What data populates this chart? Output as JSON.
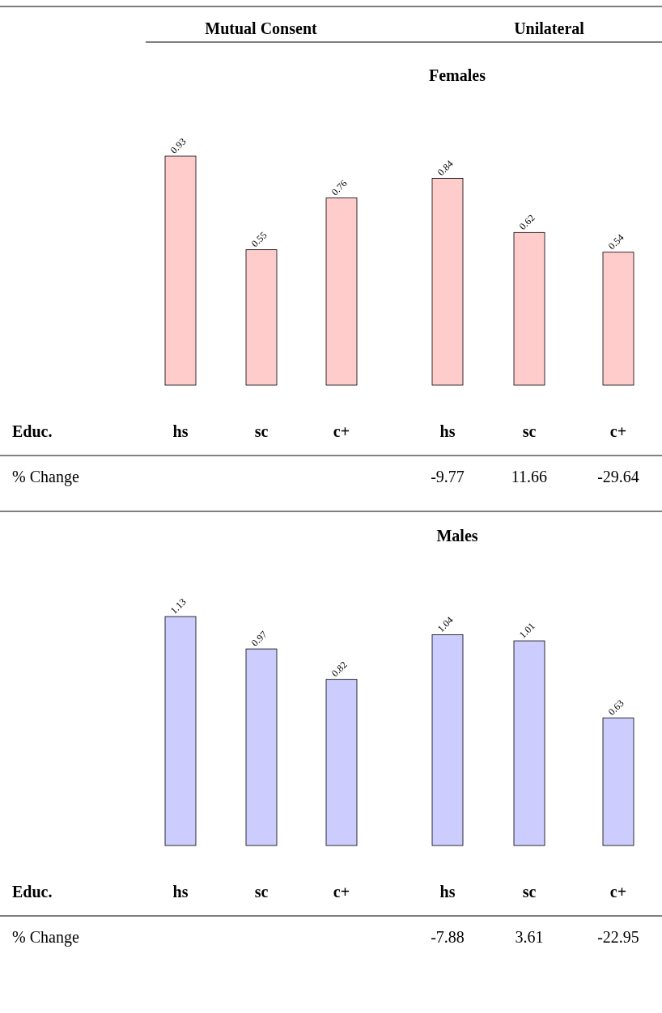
{
  "chart_data": [
    {
      "type": "bar",
      "title": "Females",
      "xlabel": "Educ.",
      "categories": [
        "hs",
        "sc",
        "c+",
        "hs",
        "sc",
        "c+"
      ],
      "values": [
        0.93,
        0.55,
        0.76,
        0.84,
        0.62,
        0.54
      ],
      "color": "#ffcccc",
      "data_labels": true,
      "annotations": [
        "Mutual Consent",
        "Unilateral",
        "% Change",
        "-9.77",
        "11.66",
        "-29.64"
      ]
    },
    {
      "type": "bar",
      "title": "Males",
      "xlabel": "Educ.",
      "categories": [
        "hs",
        "sc",
        "c+",
        "hs",
        "sc",
        "c+"
      ],
      "values": [
        1.13,
        0.97,
        0.82,
        1.04,
        1.01,
        0.63
      ],
      "color": "#ccccff",
      "data_labels": true,
      "annotations": [
        "% Change",
        "-7.88",
        "3.61",
        "-22.95"
      ]
    }
  ]
}
